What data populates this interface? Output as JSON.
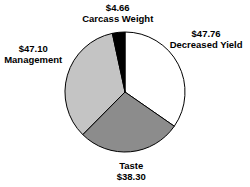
{
  "chart_data": {
    "type": "pie",
    "categories": [
      "Decreased Yield",
      "Taste",
      "Management",
      "Carcass Weight"
    ],
    "values": [
      47.76,
      38.3,
      47.1,
      4.66
    ],
    "value_labels": [
      "$47.76",
      "$38.30",
      "$47.10",
      "$4.66"
    ],
    "colors": [
      "#ffffff",
      "#8c8c8c",
      "#c4c4c4",
      "#000000"
    ],
    "data_labels": true
  }
}
